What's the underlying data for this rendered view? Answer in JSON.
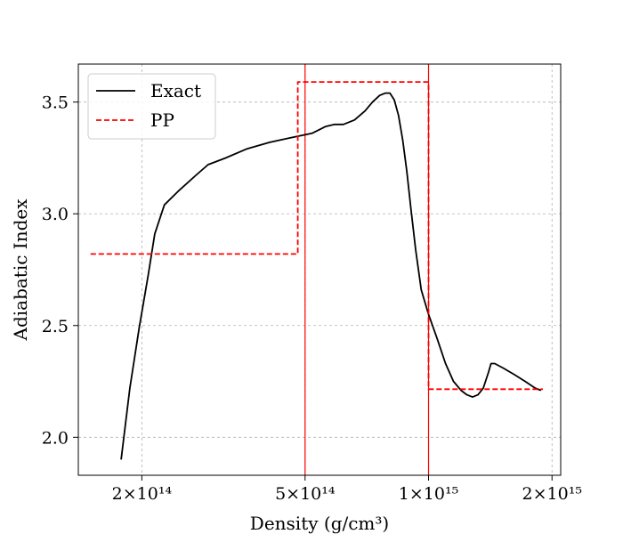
{
  "chart_data": {
    "type": "line",
    "xlabel": "Density (g/cm³)",
    "ylabel": "Adiabatic Index",
    "xscale": "log",
    "xlim": [
      140000000000000.0,
      2100000000000000.0
    ],
    "ylim": [
      1.83,
      3.67
    ],
    "xticks": [
      {
        "value": 200000000000000.0,
        "label": "2×10¹⁴"
      },
      {
        "value": 500000000000000.0,
        "label": "5×10¹⁴"
      },
      {
        "value": 1000000000000000.0,
        "label": "1×10¹⁵"
      },
      {
        "value": 2000000000000000.0,
        "label": "2×10¹⁵"
      }
    ],
    "yticks": [
      {
        "value": 2.0,
        "label": "2.0"
      },
      {
        "value": 2.5,
        "label": "2.5"
      },
      {
        "value": 3.0,
        "label": "3.0"
      },
      {
        "value": 3.5,
        "label": "3.5"
      }
    ],
    "grid": true,
    "legend": {
      "position": "top-left",
      "entries": [
        "Exact",
        "PP"
      ]
    },
    "series": [
      {
        "name": "Exact",
        "color": "#000000",
        "style": "solid",
        "x": [
          178000000000000.0,
          187000000000000.0,
          197000000000000.0,
          207000000000000.0,
          215000000000000.0,
          227000000000000.0,
          245000000000000.0,
          270000000000000.0,
          290000000000000.0,
          320000000000000.0,
          360000000000000.0,
          410000000000000.0,
          460000000000000.0,
          520000000000000.0,
          560000000000000.0,
          590000000000000.0,
          620000000000000.0,
          660000000000000.0,
          700000000000000.0,
          730000000000000.0,
          760000000000000.0,
          785000000000000.0,
          805000000000000.0,
          825000000000000.0,
          845000000000000.0,
          865000000000000.0,
          885000000000000.0,
          905000000000000.0,
          930000000000000.0,
          960000000000000.0,
          1000000000000000.0,
          1050000000000000.0,
          1100000000000000.0,
          1150000000000000.0,
          1200000000000000.0,
          1240000000000000.0,
          1280000000000000.0,
          1320000000000000.0,
          1360000000000000.0,
          1400000000000000.0,
          1420000000000000.0,
          1450000000000000.0,
          1520000000000000.0,
          1620000000000000.0,
          1720000000000000.0,
          1820000000000000.0,
          1880000000000000.0
        ],
        "y": [
          1.9,
          2.22,
          2.49,
          2.72,
          2.91,
          3.04,
          3.1,
          3.17,
          3.22,
          3.25,
          3.29,
          3.32,
          3.34,
          3.36,
          3.39,
          3.4,
          3.4,
          3.42,
          3.46,
          3.5,
          3.53,
          3.54,
          3.54,
          3.51,
          3.44,
          3.33,
          3.19,
          3.03,
          2.84,
          2.66,
          2.55,
          2.44,
          2.33,
          2.25,
          2.21,
          2.19,
          2.18,
          2.19,
          2.22,
          2.29,
          2.33,
          2.33,
          2.31,
          2.28,
          2.25,
          2.22,
          2.21
        ]
      },
      {
        "name": "PP",
        "color": "#ff0000",
        "style": "dashed",
        "x": [
          150000000000000.0,
          480000000000000.0,
          480000000000000.0,
          1000000000000000.0,
          1000000000000000.0,
          1900000000000000.0
        ],
        "y": [
          2.82,
          2.82,
          3.59,
          3.59,
          2.215,
          2.215
        ]
      }
    ],
    "vlines": [
      {
        "x": 500000000000000.0,
        "color": "#ff0000"
      },
      {
        "x": 1000000000000000.0,
        "color": "#ff0000"
      }
    ]
  }
}
